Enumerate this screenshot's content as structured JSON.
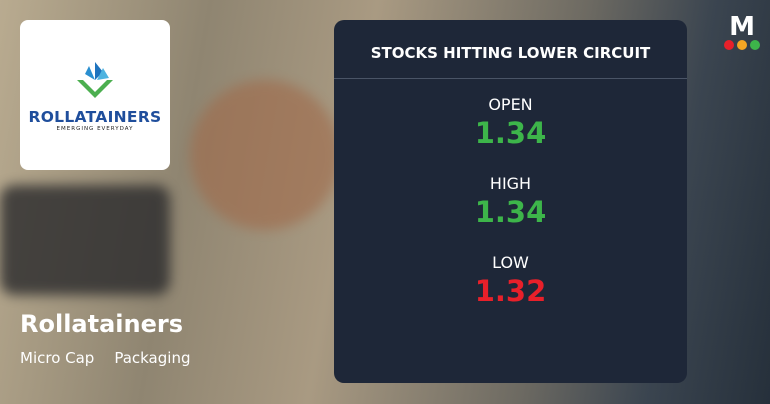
{
  "company": {
    "name": "Rollatainers",
    "logo_text": "ROLLATAINERS",
    "logo_tagline": "EMERGING EVERYDAY",
    "cap": "Micro Cap",
    "sector": "Packaging"
  },
  "panel": {
    "title": "STOCKS HITTING LOWER CIRCUIT",
    "open": {
      "label": "OPEN",
      "value": "1.34"
    },
    "high": {
      "label": "HIGH",
      "value": "1.34"
    },
    "low": {
      "label": "LOW",
      "value": "1.32"
    }
  },
  "colors": {
    "up": "#3db54a",
    "down": "#e8202a",
    "panel": "#1e2738"
  },
  "brand_logo": "M"
}
